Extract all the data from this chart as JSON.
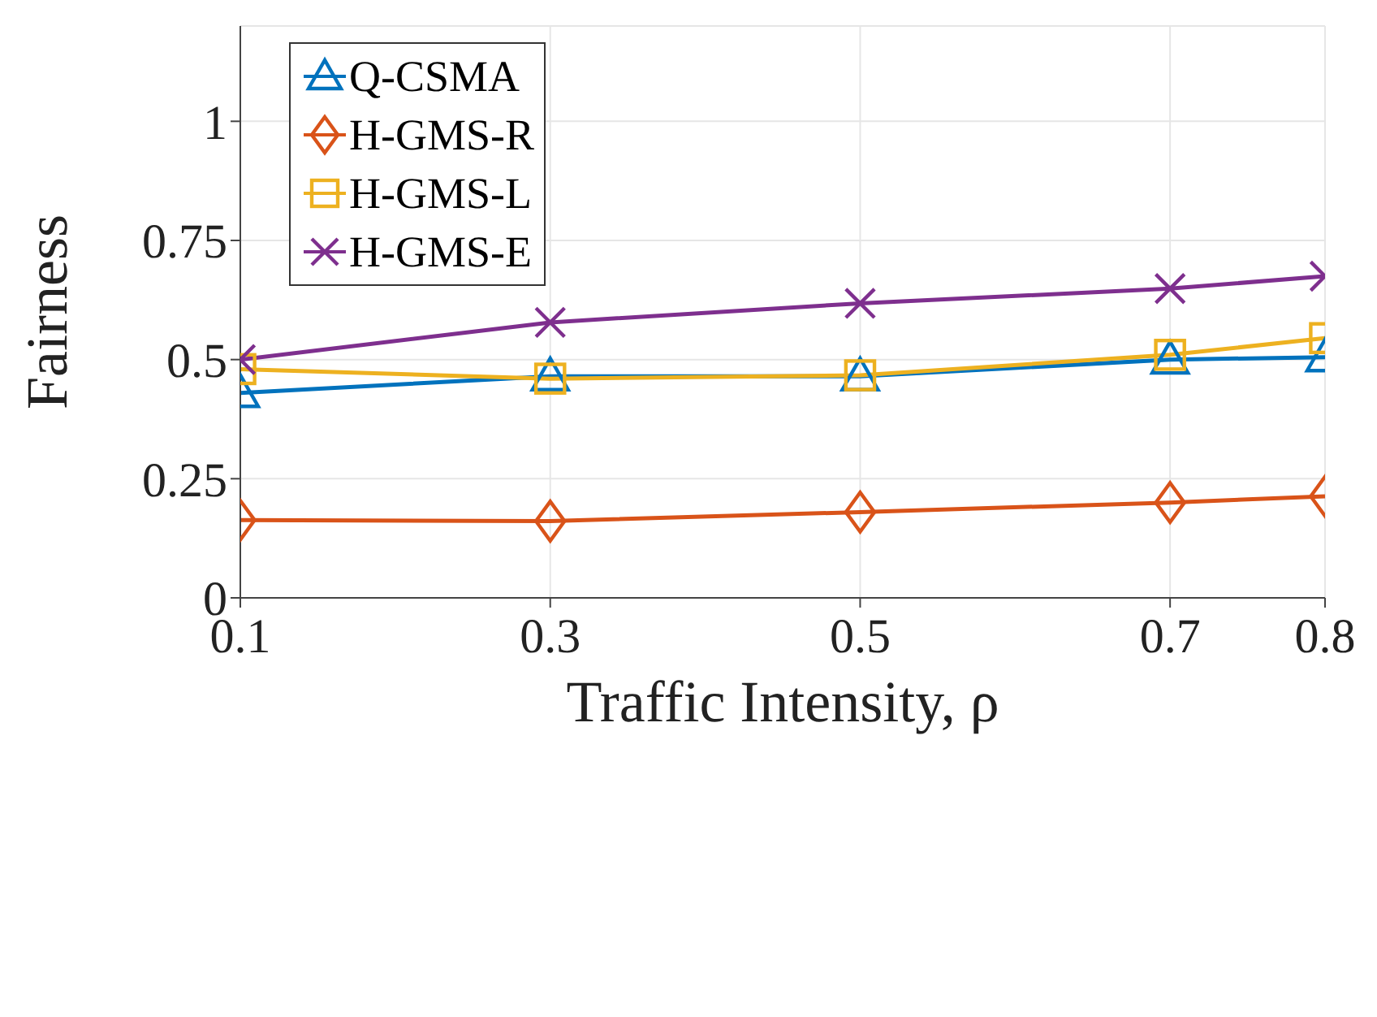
{
  "chart_data": {
    "type": "line",
    "xlabel": "Traffic Intensity,  ρ",
    "ylabel": "Fairness",
    "x": [
      0.1,
      0.3,
      0.5,
      0.7,
      0.8
    ],
    "xlim": [
      0.1,
      0.8
    ],
    "xticks": [
      0.1,
      0.3,
      0.5,
      0.7,
      0.8
    ],
    "ylim": [
      0,
      1.2
    ],
    "yticks": [
      0,
      0.25,
      0.5,
      0.75,
      1
    ],
    "grid": true,
    "legend": "top left",
    "series": [
      {
        "name": "Q-CSMA",
        "color": "#0072bd",
        "marker": "triangle",
        "values": [
          0.43,
          0.465,
          0.465,
          0.5,
          0.505
        ]
      },
      {
        "name": "H-GMS-R",
        "color": "#d95319",
        "marker": "diamond",
        "values": [
          0.163,
          0.161,
          0.18,
          0.2,
          0.213
        ]
      },
      {
        "name": "H-GMS-L",
        "color": "#edb120",
        "marker": "square",
        "values": [
          0.48,
          0.46,
          0.467,
          0.51,
          0.545
        ]
      },
      {
        "name": "H-GMS-E",
        "color": "#7e2f8e",
        "marker": "cross",
        "values": [
          0.5,
          0.578,
          0.618,
          0.649,
          0.675
        ]
      }
    ]
  }
}
